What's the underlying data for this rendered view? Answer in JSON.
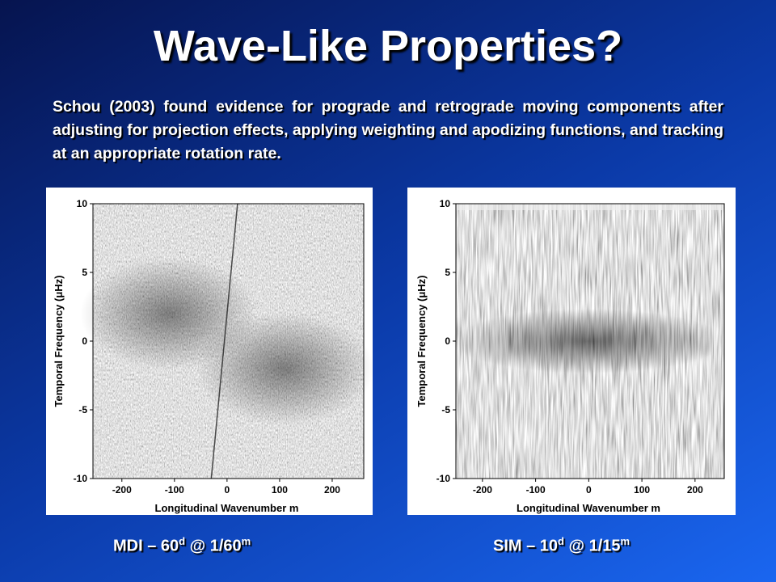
{
  "slide": {
    "title": "Wave-Like Properties?",
    "body": "Schou (2003) found evidence for prograde and retrograde moving components after adjusting for projection effects, applying weighting and apodizing functions, and tracking at an appropriate rotation rate.",
    "panels": [
      {
        "y_label": "Temporal Frequency (μHz)",
        "x_label": "Longitudinal Wavenumber m",
        "xlim": [
          -255,
          260
        ],
        "ylim": [
          -10,
          10
        ],
        "xticks": [
          -200,
          -100,
          0,
          100,
          200
        ],
        "yticks": [
          -10,
          -5,
          0,
          5,
          10
        ],
        "caption": [
          "MDI – 60",
          "d",
          " @ 1/60",
          "m"
        ]
      },
      {
        "y_label": "Temporal Frequency (μHz)",
        "x_label": "Longitudinal Wavenumber m",
        "xlim": [
          -250,
          255
        ],
        "ylim": [
          -10,
          10
        ],
        "xticks": [
          -200,
          -100,
          0,
          100,
          200
        ],
        "yticks": [
          -10,
          -5,
          0,
          5,
          10
        ],
        "caption": [
          "SIM – 10",
          "d",
          " @ 1/15",
          "m"
        ]
      }
    ]
  }
}
